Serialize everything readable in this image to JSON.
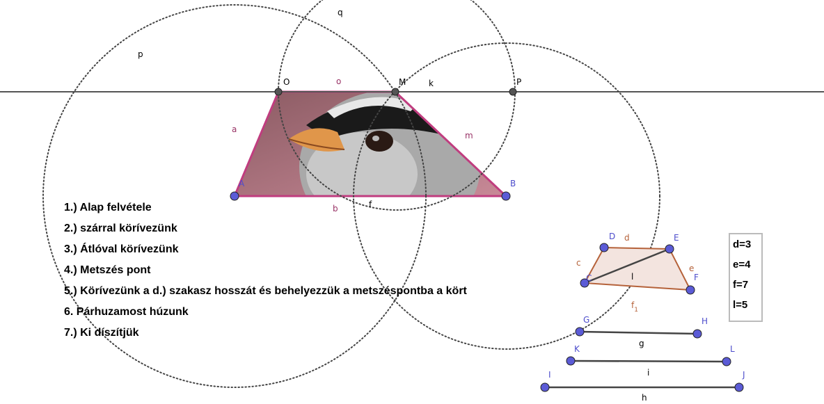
{
  "point_labels": {
    "O": "O",
    "M": "M",
    "P": "P",
    "A": "A",
    "B": "B",
    "C": "C",
    "D": "D",
    "E": "E",
    "F": "F",
    "G": "G",
    "H": "H",
    "K": "K",
    "L": "L",
    "I": "I",
    "J": "J"
  },
  "object_labels": {
    "q": "q",
    "p": "p",
    "o": "o",
    "k": "k",
    "a": "a",
    "m": "m",
    "b": "b",
    "f": "f",
    "d": "d",
    "c": "c",
    "e": "e",
    "l": "l",
    "g": "g",
    "i": "i",
    "h": "h"
  },
  "f1_label": {
    "base": "f",
    "sub": "1"
  },
  "steps": [
    "1.) Alap felvétele",
    "2.) szárral körívezünk",
    "3.) Átlóval körívezünk",
    "4.) Metszés pont",
    "5.) Körívezünk a d.) szakasz hosszát és behelyezzük a metszéspontba a kört",
    "6. Párhuzamost húzunk",
    "7.) Ki díszítjük"
  ],
  "values_box": [
    "d=3",
    "e=4",
    "f=7",
    "l=5"
  ]
}
